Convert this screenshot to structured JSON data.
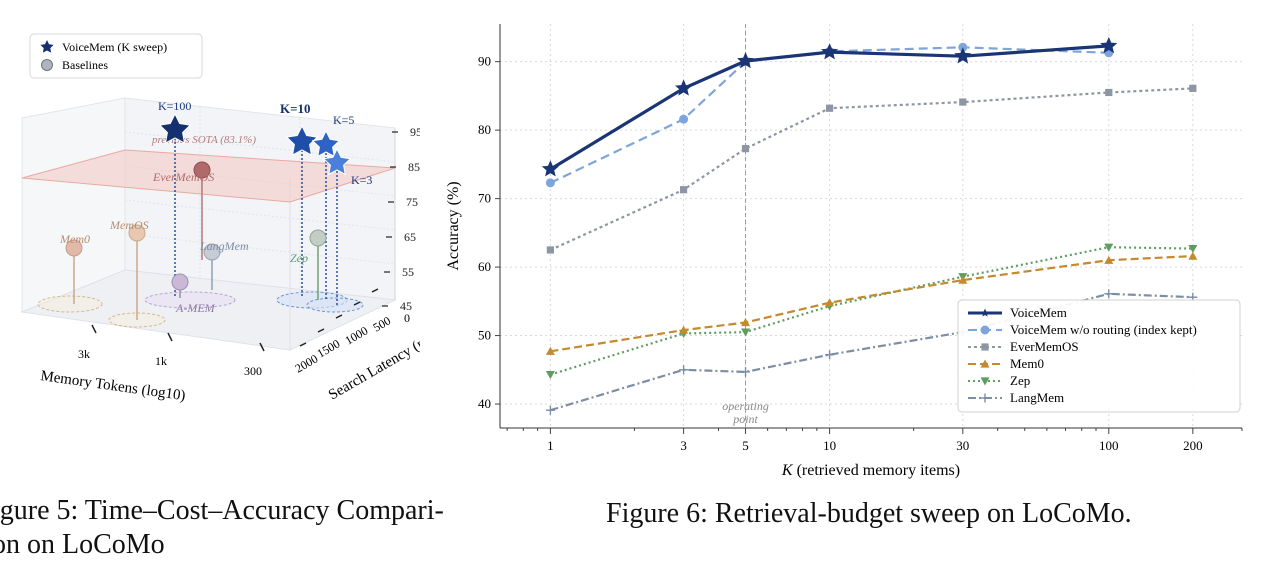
{
  "captions": {
    "fig5_line1": "igure 5: Time–Cost–Accuracy Compari-",
    "fig5_line2": "on on LoCoMo",
    "fig6": "Figure 6: Retrieval-budget sweep on LoCoMo."
  },
  "chart_data": [
    {
      "type": "scatter",
      "subtype": "3d",
      "legend": [
        "VoiceMem (K sweep)",
        "Baselines"
      ],
      "legend_position": "top-left",
      "xlabel": "Memory Tokens (log10)",
      "ylabel": "Search Latency (ms)",
      "zlabel": "",
      "x_ticks": [
        "3k",
        "1k",
        "300"
      ],
      "y_ticks": [
        "2000",
        "1500",
        "1000",
        "500",
        "0"
      ],
      "z_ticks": [
        "95",
        "85",
        "75",
        "65",
        "55",
        "45"
      ],
      "zlim": [
        45,
        95
      ],
      "reference_plane": {
        "label": "previous SOTA (83.1%)",
        "z": 83.1
      },
      "voicemem_labels": [
        "K=100",
        "K=10",
        "K=5",
        "K=3"
      ],
      "baselines": [
        "Mem0",
        "MemOS",
        "EverMemOS",
        "LangMem",
        "Zep",
        "A-MEM"
      ],
      "colors": {
        "voicemem": "#1f3a7a",
        "baseline": "#b0b4bf",
        "plane": "#f4c9c4"
      }
    },
    {
      "type": "line",
      "xlabel": "K  (retrieved memory items)",
      "ylabel": "Accuracy (%)",
      "x_scale": "log",
      "x": [
        1,
        3,
        5,
        10,
        30,
        100,
        200
      ],
      "x_ticks": [
        "1",
        "3",
        "5",
        "10",
        "30",
        "100",
        "200"
      ],
      "y_ticks": [
        "40",
        "50",
        "60",
        "70",
        "80",
        "90"
      ],
      "ylim": [
        36.5,
        95.5
      ],
      "grid": true,
      "legend_position": "lower-right",
      "vline": {
        "x": 5,
        "label": [
          "operating",
          "point"
        ]
      },
      "series": [
        {
          "name": "VoiceMem",
          "x": [
            1,
            3,
            5,
            10,
            30,
            100
          ],
          "values": [
            74.3,
            86.1,
            90.1,
            91.4,
            90.8,
            92.3
          ],
          "color": "#1a3575",
          "marker": "star",
          "dash": ""
        },
        {
          "name": "VoiceMem w/o routing (index kept)",
          "x": [
            1,
            3,
            5,
            10,
            30,
            100
          ],
          "values": [
            72.3,
            81.6,
            90.0,
            91.5,
            92.1,
            91.3
          ],
          "color": "#7ea4dc",
          "marker": "circle",
          "dash": "9,5"
        },
        {
          "name": "EverMemOS",
          "x": [
            1,
            3,
            5,
            10,
            30,
            100,
            200
          ],
          "values": [
            62.5,
            71.3,
            77.3,
            83.2,
            84.1,
            85.5,
            86.1
          ],
          "color": "#8e95a3",
          "marker": "square",
          "dash": "3,3"
        },
        {
          "name": "Mem0",
          "x": [
            1,
            3,
            5,
            10,
            30,
            100,
            200
          ],
          "values": [
            47.7,
            50.8,
            51.9,
            54.8,
            58.1,
            61.0,
            61.6
          ],
          "color": "#c58a2e",
          "marker": "triangle",
          "dash": "8,4"
        },
        {
          "name": "Zep",
          "x": [
            1,
            3,
            5,
            10,
            30,
            100,
            200
          ],
          "values": [
            44.3,
            50.3,
            50.5,
            54.3,
            58.6,
            62.9,
            62.7
          ],
          "color": "#5d9e5f",
          "marker": "tri-down",
          "dash": "2,3"
        },
        {
          "name": "LangMem",
          "x": [
            1,
            3,
            5,
            10,
            30,
            100,
            200
          ],
          "values": [
            39.1,
            45.0,
            44.7,
            47.2,
            50.5,
            56.1,
            55.6
          ],
          "color": "#7b8ea6",
          "marker": "plus",
          "dash": "8,3,2,3"
        }
      ]
    }
  ]
}
